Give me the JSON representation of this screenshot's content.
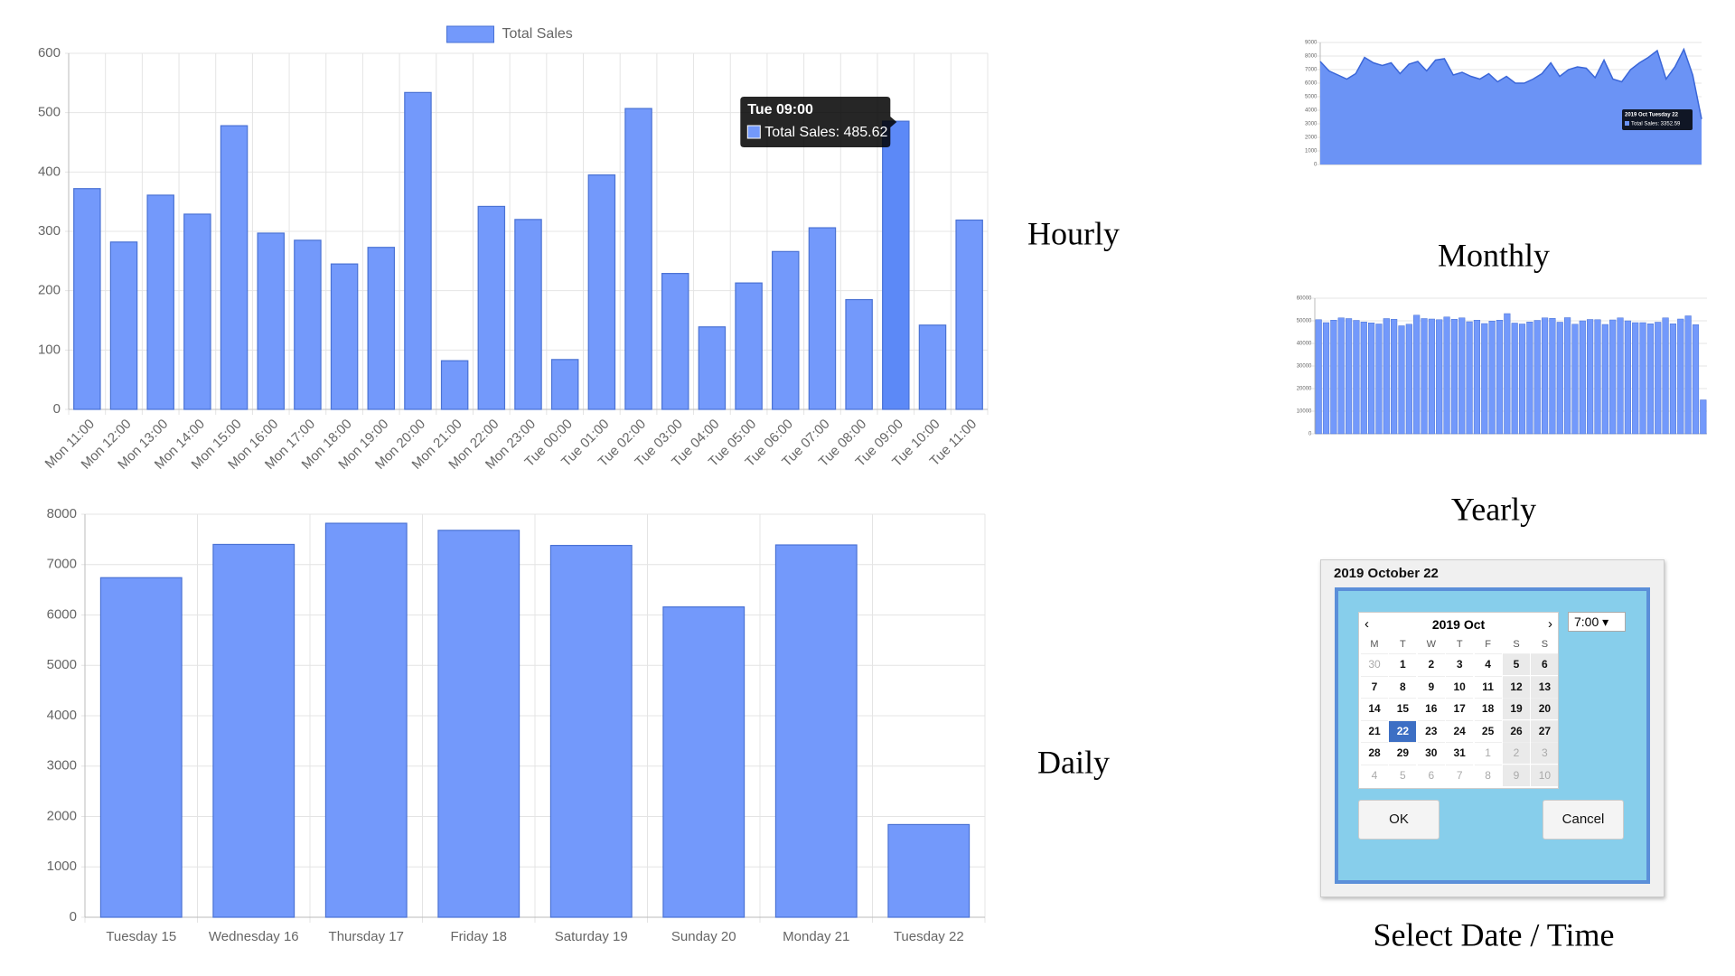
{
  "chart_data": [
    {
      "type": "bar",
      "legend": "Total Sales",
      "color": "#7399fb",
      "stroke": "#4a72d4",
      "highlight_color": "#5c89f7",
      "categories": [
        "Mon 11:00",
        "Mon 12:00",
        "Mon 13:00",
        "Mon 14:00",
        "Mon 15:00",
        "Mon 16:00",
        "Mon 17:00",
        "Mon 18:00",
        "Mon 19:00",
        "Mon 20:00",
        "Mon 21:00",
        "Mon 22:00",
        "Mon 23:00",
        "Tue 00:00",
        "Tue 01:00",
        "Tue 02:00",
        "Tue 03:00",
        "Tue 04:00",
        "Tue 05:00",
        "Tue 06:00",
        "Tue 07:00",
        "Tue 08:00",
        "Tue 09:00",
        "Tue 10:00",
        "Tue 11:00"
      ],
      "values": [
        372,
        282,
        361,
        329,
        478,
        297,
        285,
        245,
        273,
        534,
        82,
        342,
        320,
        84,
        395,
        507,
        229,
        139,
        213,
        266,
        306,
        185,
        485.62,
        142,
        319
      ],
      "ylim": [
        0,
        600
      ],
      "yticks": [
        0,
        100,
        200,
        300,
        400,
        500,
        600
      ],
      "grid": true,
      "tooltip": {
        "title": "Tue 09:00",
        "label": "Total Sales: 485.62"
      },
      "caption": "Hourly"
    },
    {
      "type": "bar",
      "color": "#7399fb",
      "stroke": "#4a72d4",
      "categories": [
        "Tuesday 15",
        "Wednesday 16",
        "Thursday 17",
        "Friday 18",
        "Saturday 19",
        "Sunday 20",
        "Monday 21",
        "Tuesday 22"
      ],
      "values": [
        6740,
        7400,
        7820,
        7680,
        7380,
        6160,
        7390,
        1840
      ],
      "ylim": [
        0,
        8000
      ],
      "yticks": [
        0,
        1000,
        2000,
        3000,
        4000,
        5000,
        6000,
        7000,
        8000
      ],
      "grid": true,
      "caption": "Daily"
    },
    {
      "type": "area",
      "color": "#6b93f5",
      "stroke": "#3a66d8",
      "values": [
        7600,
        6900,
        6600,
        6300,
        6700,
        7900,
        7500,
        7300,
        7500,
        6700,
        7400,
        7600,
        6900,
        7700,
        7800,
        6600,
        6800,
        6500,
        6300,
        6700,
        6100,
        6500,
        6000,
        6000,
        6300,
        6700,
        7500,
        6500,
        7000,
        7200,
        7100,
        6400,
        7700,
        6300,
        6100,
        7000,
        7500,
        7900,
        8400,
        6300,
        7200,
        8500,
        6600,
        3352.59
      ],
      "ylim": [
        0,
        9000
      ],
      "yticks": [
        0,
        1000,
        2000,
        3000,
        4000,
        5000,
        6000,
        7000,
        8000,
        9000
      ],
      "grid": true,
      "tooltip": {
        "title": "2019 Oct Tuesday 22",
        "label": "Total Sales: 3352.59"
      },
      "caption": "Monthly"
    },
    {
      "type": "bar",
      "color": "#7399fb",
      "stroke": "#4a72d4",
      "values": [
        50500,
        49200,
        50300,
        51300,
        51000,
        50200,
        49500,
        49100,
        48600,
        51000,
        50700,
        47800,
        48500,
        52500,
        51000,
        50800,
        50500,
        51700,
        50700,
        51300,
        49600,
        50300,
        48800,
        49900,
        50300,
        53200,
        49000,
        48600,
        49500,
        50200,
        51300,
        51100,
        49400,
        51400,
        48500,
        50000,
        50600,
        50500,
        48400,
        50400,
        51300,
        50000,
        49200,
        49200,
        48700,
        49400,
        51300,
        48700,
        50800,
        52200,
        48300,
        15000
      ],
      "ylim": [
        0,
        60000
      ],
      "yticks": [
        0,
        10000,
        20000,
        30000,
        40000,
        50000,
        60000
      ],
      "grid": true,
      "caption": "Yearly"
    }
  ],
  "date_picker": {
    "title": "2019 October 22",
    "month": "2019 Oct",
    "prev": "‹",
    "next": "›",
    "time": "7:00 ▾",
    "weekdays": [
      "M",
      "T",
      "W",
      "T",
      "F",
      "S",
      "S"
    ],
    "weeks": [
      [
        30,
        1,
        2,
        3,
        4,
        5,
        6
      ],
      [
        7,
        8,
        9,
        10,
        11,
        12,
        13
      ],
      [
        14,
        15,
        16,
        17,
        18,
        19,
        20
      ],
      [
        21,
        22,
        23,
        24,
        25,
        26,
        27
      ],
      [
        28,
        29,
        30,
        31,
        1,
        2,
        3
      ],
      [
        4,
        5,
        6,
        7,
        8,
        9,
        10
      ]
    ],
    "selected_day": 22,
    "ok": "OK",
    "cancel": "Cancel",
    "caption": "Select Date / Time"
  }
}
